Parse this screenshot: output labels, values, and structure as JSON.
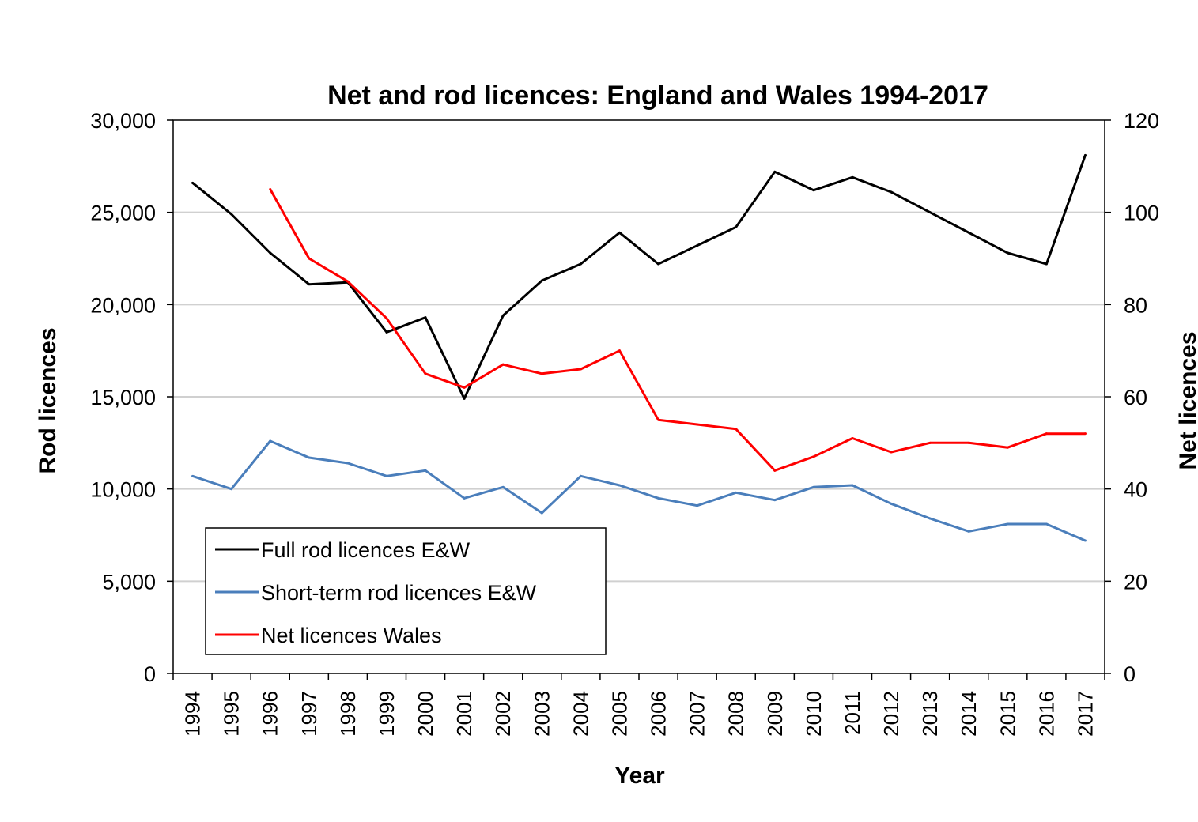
{
  "chart_data": {
    "type": "line",
    "title": "Net and rod licences: England and Wales 1994-2017",
    "xlabel": "Year",
    "ylabel_left": "Rod licences",
    "ylabel_right": "Net licences",
    "ylim_left": [
      0,
      30000
    ],
    "ylim_right": [
      0,
      120
    ],
    "yticks_left": [
      "0",
      "5,000",
      "10,000",
      "15,000",
      "20,000",
      "25,000",
      "30,000"
    ],
    "yticks_right": [
      "0",
      "20",
      "40",
      "60",
      "80",
      "100",
      "120"
    ],
    "categories": [
      "1994",
      "1995",
      "1996",
      "1997",
      "1998",
      "1999",
      "2000",
      "2001",
      "2002",
      "2003",
      "2004",
      "2005",
      "2006",
      "2007",
      "2008",
      "2009",
      "2010",
      "2011",
      "2012",
      "2013",
      "2014",
      "2015",
      "2016",
      "2017"
    ],
    "grid": true,
    "legend_position": "bottom-left",
    "series": [
      {
        "name": "Full rod licences E&W",
        "axis": "left",
        "color": "#000000",
        "values": [
          26600,
          24900,
          22800,
          21100,
          21200,
          18500,
          19300,
          14900,
          19400,
          21300,
          22200,
          23900,
          22200,
          23200,
          24200,
          27200,
          26200,
          26900,
          26100,
          25000,
          23900,
          22800,
          22200,
          28100
        ]
      },
      {
        "name": "Short-term rod licences E&W",
        "axis": "left",
        "color": "#4a7ebb",
        "values": [
          10700,
          10000,
          12600,
          11700,
          11400,
          10700,
          11000,
          9500,
          10100,
          8700,
          10700,
          10200,
          9500,
          9100,
          9800,
          9400,
          10100,
          10200,
          9200,
          8400,
          7700,
          8100,
          8100,
          7200
        ]
      },
      {
        "name": "Net licences Wales",
        "axis": "right",
        "color": "#ff0000",
        "values": [
          null,
          null,
          105,
          90,
          85,
          77,
          65,
          62,
          67,
          65,
          66,
          70,
          55,
          54,
          53,
          44,
          47,
          51,
          48,
          50,
          50,
          49,
          52,
          52
        ]
      }
    ]
  }
}
